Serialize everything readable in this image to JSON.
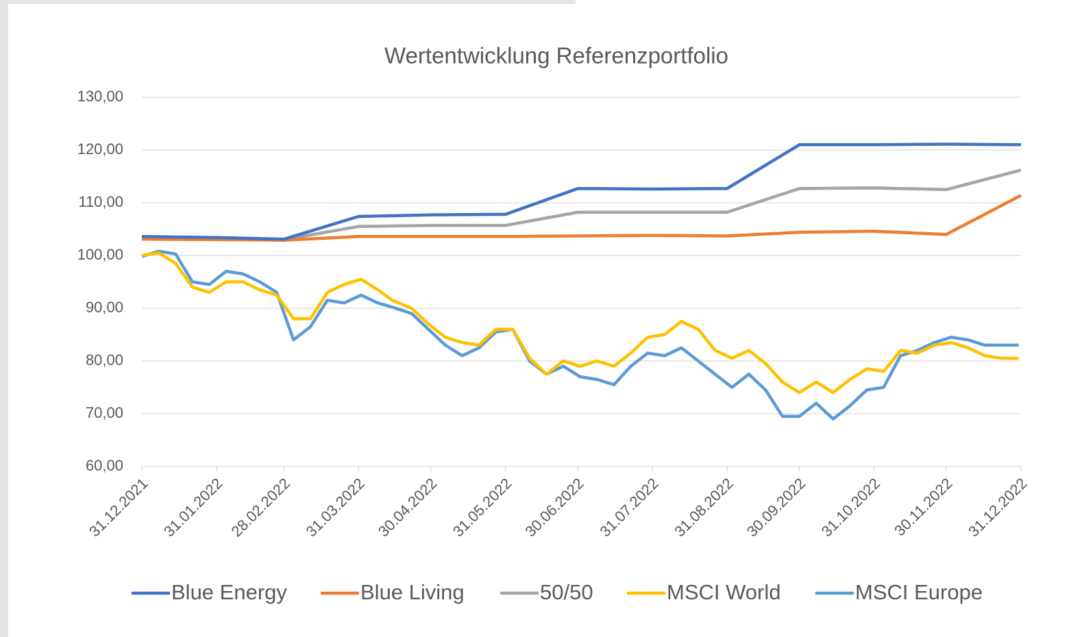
{
  "chart_data": {
    "type": "line",
    "title": "Wertentwicklung Referenzportfolio",
    "xlim": [
      "31.12.2021",
      "31.12.2022"
    ],
    "xticks": [
      "31.12.2021",
      "31.01.2022",
      "28.02.2022",
      "31.03.2022",
      "30.04.2022",
      "31.05.2022",
      "30.06.2022",
      "31.07.2022",
      "31.08.2022",
      "30.09.2022",
      "31.10.2022",
      "30.11.2022",
      "31.12.2022"
    ],
    "ylim": [
      60,
      130
    ],
    "yticks": [
      {
        "value": 60,
        "label": "60,00"
      },
      {
        "value": 70,
        "label": "70,00"
      },
      {
        "value": 80,
        "label": "80,00"
      },
      {
        "value": 90,
        "label": "90,00"
      },
      {
        "value": 100,
        "label": "100,00"
      },
      {
        "value": 110,
        "label": "110,00"
      },
      {
        "value": 120,
        "label": "120,00"
      },
      {
        "value": 130,
        "label": "130,00"
      }
    ],
    "grid": true,
    "legend": "bottom",
    "series": [
      {
        "name": "Blue Energy",
        "color": "#4472c4",
        "x": [
          "31.12.2021",
          "31.01.2022",
          "28.02.2022",
          "31.03.2022",
          "30.04.2022",
          "31.05.2022",
          "30.06.2022",
          "31.07.2022",
          "31.08.2022",
          "30.09.2022",
          "31.10.2022",
          "30.11.2022",
          "31.12.2022"
        ],
        "values": [
          103.6,
          103.4,
          103.1,
          107.4,
          107.7,
          107.8,
          112.7,
          112.6,
          112.7,
          121.0,
          121.0,
          121.1,
          121.0
        ]
      },
      {
        "name": "Blue Living",
        "color": "#ed7d31",
        "x": [
          "31.12.2021",
          "31.01.2022",
          "28.02.2022",
          "31.03.2022",
          "30.04.2022",
          "31.05.2022",
          "30.06.2022",
          "31.07.2022",
          "31.08.2022",
          "30.09.2022",
          "31.10.2022",
          "30.11.2022",
          "31.12.2022"
        ],
        "values": [
          103.1,
          103.0,
          102.9,
          103.6,
          103.6,
          103.6,
          103.7,
          103.8,
          103.7,
          104.4,
          104.6,
          104.0,
          111.4
        ]
      },
      {
        "name": "50/50",
        "color": "#a5a5a5",
        "x": [
          "31.12.2021",
          "31.01.2022",
          "28.02.2022",
          "31.03.2022",
          "30.04.2022",
          "31.05.2022",
          "30.06.2022",
          "31.07.2022",
          "31.08.2022",
          "30.09.2022",
          "31.10.2022",
          "30.11.2022",
          "31.12.2022"
        ],
        "values": [
          103.4,
          103.2,
          103.0,
          105.5,
          105.7,
          105.7,
          108.2,
          108.2,
          108.2,
          112.7,
          112.8,
          112.5,
          116.2
        ]
      },
      {
        "name": "MSCI World",
        "color": "#ffc000",
        "x": [
          "31.12.2021",
          "07.01.2022",
          "14.01.2022",
          "21.01.2022",
          "28.01.2022",
          "04.02.2022",
          "11.02.2022",
          "18.02.2022",
          "25.02.2022",
          "04.03.2022",
          "11.03.2022",
          "18.03.2022",
          "25.03.2022",
          "01.04.2022",
          "08.04.2022",
          "14.04.2022",
          "22.04.2022",
          "29.04.2022",
          "06.05.2022",
          "13.05.2022",
          "20.05.2022",
          "27.05.2022",
          "03.06.2022",
          "10.06.2022",
          "17.06.2022",
          "24.06.2022",
          "01.07.2022",
          "08.07.2022",
          "15.07.2022",
          "22.07.2022",
          "29.07.2022",
          "05.08.2022",
          "12.08.2022",
          "19.08.2022",
          "26.08.2022",
          "02.09.2022",
          "09.09.2022",
          "16.09.2022",
          "23.09.2022",
          "30.09.2022",
          "07.10.2022",
          "14.10.2022",
          "21.10.2022",
          "28.10.2022",
          "04.11.2022",
          "11.11.2022",
          "18.11.2022",
          "25.11.2022",
          "02.12.2022",
          "09.12.2022",
          "16.12.2022",
          "23.12.2022",
          "30.12.2022"
        ],
        "values": [
          100,
          100.5,
          98.5,
          94,
          93,
          95,
          95,
          93.5,
          92.5,
          88,
          88,
          93,
          94.5,
          95.5,
          93.5,
          91.5,
          90,
          87,
          84.5,
          83.5,
          83,
          86,
          86,
          80.5,
          77.5,
          80,
          79,
          80,
          79,
          81.5,
          84.5,
          85,
          87.5,
          86,
          82,
          80.5,
          82,
          79.5,
          76,
          74,
          76,
          74,
          76.5,
          78.5,
          78,
          82,
          81.5,
          83,
          83.5,
          82.5,
          81,
          80.5,
          80.5
        ]
      },
      {
        "name": "MSCI Europe",
        "color": "#5b9bd5",
        "x": [
          "31.12.2021",
          "07.01.2022",
          "14.01.2022",
          "21.01.2022",
          "28.01.2022",
          "04.02.2022",
          "11.02.2022",
          "18.02.2022",
          "25.02.2022",
          "04.03.2022",
          "11.03.2022",
          "18.03.2022",
          "25.03.2022",
          "01.04.2022",
          "08.04.2022",
          "14.04.2022",
          "22.04.2022",
          "29.04.2022",
          "06.05.2022",
          "13.05.2022",
          "20.05.2022",
          "27.05.2022",
          "03.06.2022",
          "10.06.2022",
          "17.06.2022",
          "24.06.2022",
          "01.07.2022",
          "08.07.2022",
          "15.07.2022",
          "22.07.2022",
          "29.07.2022",
          "05.08.2022",
          "12.08.2022",
          "19.08.2022",
          "26.08.2022",
          "02.09.2022",
          "09.09.2022",
          "16.09.2022",
          "23.09.2022",
          "30.09.2022",
          "07.10.2022",
          "14.10.2022",
          "21.10.2022",
          "28.10.2022",
          "04.11.2022",
          "11.11.2022",
          "18.11.2022",
          "25.11.2022",
          "02.12.2022",
          "09.12.2022",
          "16.12.2022",
          "23.12.2022",
          "30.12.2022"
        ],
        "values": [
          99.8,
          100.8,
          100.3,
          95,
          94.5,
          97,
          96.5,
          95,
          93,
          84,
          86.5,
          91.5,
          91,
          92.5,
          91,
          90.2,
          89,
          86,
          83,
          81,
          82.5,
          85.5,
          86,
          80,
          77.5,
          79,
          77,
          76.5,
          75.5,
          79,
          81.5,
          81,
          82.5,
          80,
          77.5,
          75,
          77.5,
          74.5,
          69.5,
          69.5,
          72,
          69,
          71.5,
          74.5,
          75,
          81,
          82,
          83.5,
          84.5,
          84,
          83,
          83,
          83
        ]
      }
    ]
  }
}
